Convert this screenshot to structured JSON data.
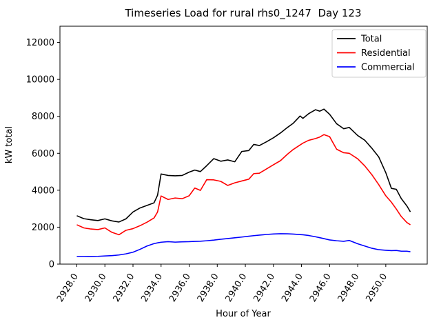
{
  "title": "Timeseries Load for rural rhs0_1247  Day 123",
  "chart_data": {
    "type": "line",
    "title": "Timeseries Load for rural rhs0_1247  Day 123",
    "xlabel": "Hour of Year",
    "ylabel": "kW total",
    "xlim": [
      2926.8,
      2952.95
    ],
    "ylim": [
      0,
      12880
    ],
    "grid": false,
    "legend_position": "upper right",
    "xticks": {
      "values": [
        2928,
        2930,
        2932,
        2934,
        2936,
        2938,
        2940,
        2942,
        2944,
        2946,
        2948,
        2950
      ],
      "labels": [
        "2928.0",
        "2930.0",
        "2932.0",
        "2934.0",
        "2936.0",
        "2938.0",
        "2940.0",
        "2942.0",
        "2944.0",
        "2946.0",
        "2948.0",
        "2950.0"
      ]
    },
    "yticks": {
      "values": [
        0,
        2000,
        4000,
        6000,
        8000,
        10000,
        12000
      ],
      "labels": [
        "0",
        "2000",
        "4000",
        "6000",
        "8000",
        "10000",
        "12000"
      ]
    },
    "x": [
      2928.0,
      2928.5,
      2929.0,
      2929.5,
      2930.0,
      2930.5,
      2931.0,
      2931.5,
      2932.0,
      2932.5,
      2933.0,
      2933.5,
      2933.75,
      2934.0,
      2934.5,
      2935.0,
      2935.5,
      2936.0,
      2936.4,
      2936.8,
      2937.25,
      2937.75,
      2938.25,
      2938.75,
      2939.25,
      2939.75,
      2940.25,
      2940.6,
      2941.0,
      2941.5,
      2942.0,
      2942.5,
      2943.0,
      2943.4,
      2943.9,
      2944.1,
      2944.5,
      2945.0,
      2945.3,
      2945.6,
      2946.0,
      2946.5,
      2947.0,
      2947.4,
      2948.0,
      2948.5,
      2949.0,
      2949.5,
      2950.0,
      2950.4,
      2950.75,
      2951.1,
      2951.5,
      2951.75
    ],
    "series": [
      {
        "name": "Total",
        "color": "#000000",
        "values": [
          2620,
          2460,
          2400,
          2360,
          2450,
          2340,
          2280,
          2450,
          2820,
          3040,
          3180,
          3320,
          3730,
          4880,
          4800,
          4780,
          4800,
          4980,
          5090,
          5010,
          5330,
          5710,
          5570,
          5640,
          5540,
          6100,
          6150,
          6480,
          6420,
          6620,
          6840,
          7100,
          7400,
          7620,
          8020,
          7890,
          8140,
          8360,
          8280,
          8390,
          8110,
          7600,
          7330,
          7400,
          6960,
          6710,
          6280,
          5800,
          4950,
          4100,
          4050,
          3550,
          3150,
          2830
        ]
      },
      {
        "name": "Residential",
        "color": "#ff0000",
        "values": [
          2130,
          1960,
          1900,
          1870,
          1960,
          1720,
          1590,
          1830,
          1920,
          2080,
          2270,
          2500,
          2820,
          3690,
          3500,
          3580,
          3540,
          3700,
          4120,
          3990,
          4570,
          4560,
          4480,
          4260,
          4400,
          4500,
          4600,
          4900,
          4920,
          5150,
          5380,
          5600,
          5950,
          6200,
          6450,
          6550,
          6700,
          6800,
          6880,
          7010,
          6900,
          6220,
          6030,
          6000,
          5700,
          5320,
          4850,
          4300,
          3700,
          3350,
          2980,
          2580,
          2250,
          2130
        ]
      },
      {
        "name": "Commercial",
        "color": "#0000ff",
        "values": [
          420,
          415,
          410,
          420,
          440,
          460,
          495,
          555,
          645,
          800,
          980,
          1110,
          1150,
          1185,
          1215,
          1190,
          1205,
          1215,
          1230,
          1240,
          1265,
          1300,
          1345,
          1385,
          1425,
          1465,
          1510,
          1540,
          1570,
          1605,
          1630,
          1645,
          1640,
          1625,
          1600,
          1590,
          1550,
          1480,
          1430,
          1380,
          1310,
          1265,
          1235,
          1280,
          1100,
          980,
          860,
          780,
          750,
          730,
          740,
          700,
          700,
          670
        ]
      }
    ],
    "legend": [
      {
        "label": "Total",
        "color": "#000000"
      },
      {
        "label": "Residential",
        "color": "#ff0000"
      },
      {
        "label": "Commercial",
        "color": "#0000ff"
      }
    ]
  }
}
